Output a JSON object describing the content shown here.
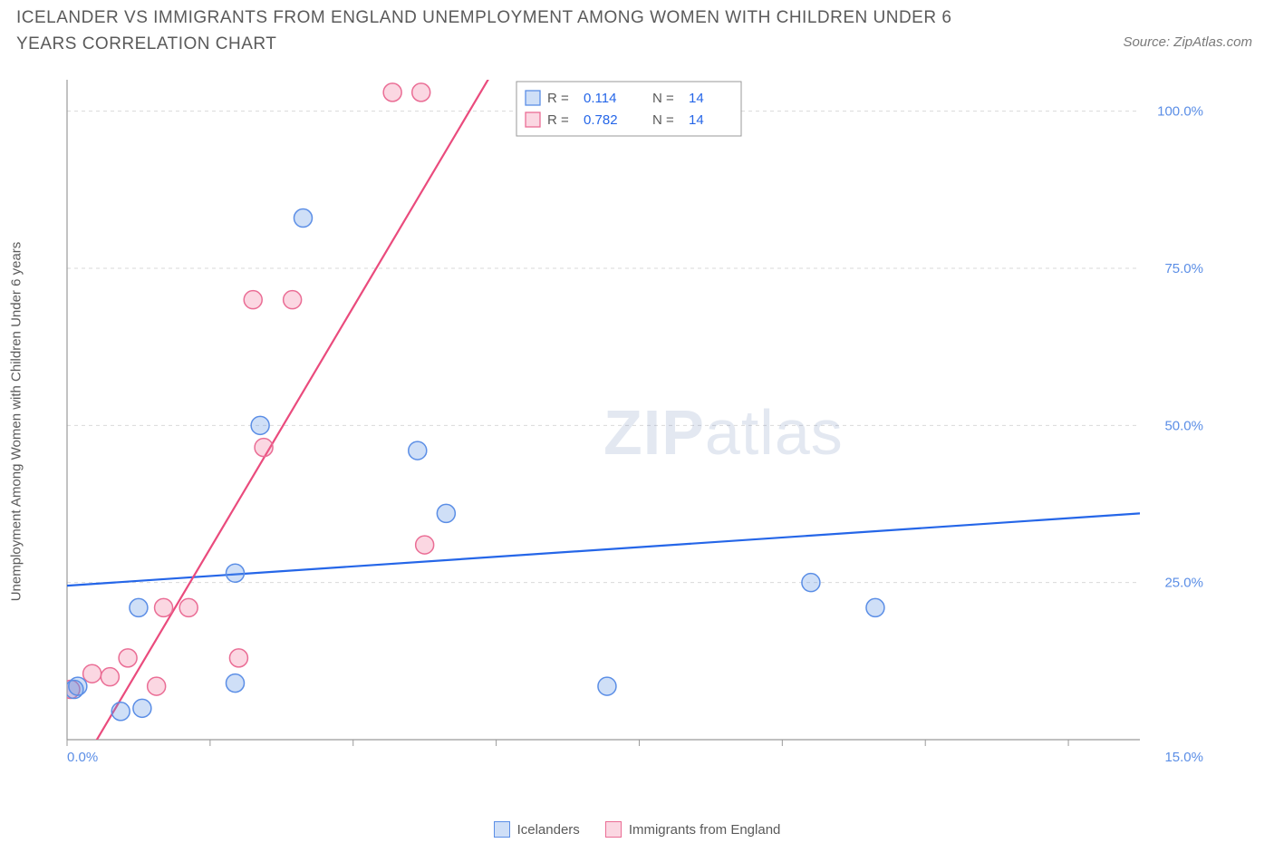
{
  "title": "ICELANDER VS IMMIGRANTS FROM ENGLAND UNEMPLOYMENT AMONG WOMEN WITH CHILDREN UNDER 6 YEARS CORRELATION CHART",
  "source_label": "Source: ZipAtlas.com",
  "y_axis_label": "Unemployment Among Women with Children Under 6 years",
  "watermark": {
    "bold": "ZIP",
    "rest": "atlas"
  },
  "chart": {
    "type": "scatter",
    "xlim": [
      0,
      15
    ],
    "ylim": [
      0,
      105
    ],
    "x_ticks": [
      0,
      2,
      4,
      6,
      8,
      10,
      12,
      14
    ],
    "x_tick_labels_shown": {
      "0": "0.0%",
      "15": "15.0%"
    },
    "y_ticks": [
      25,
      50,
      75,
      100
    ],
    "y_tick_labels": [
      "25.0%",
      "50.0%",
      "75.0%",
      "100.0%"
    ],
    "grid_color": "#d9d9d9",
    "axis_color": "#9a9a9a",
    "tick_label_color": "#5b8ee6",
    "background_color": "#ffffff",
    "marker_radius": 10,
    "marker_stroke_width": 1.5,
    "trend_line_width": 2.2,
    "series": [
      {
        "name": "Icelanders",
        "fill": "rgba(96,150,230,0.30)",
        "stroke": "#5b8ee6",
        "points": [
          [
            0.1,
            8.0
          ],
          [
            0.15,
            8.5
          ],
          [
            0.75,
            4.5
          ],
          [
            1.05,
            5.0
          ],
          [
            1.0,
            21.0
          ],
          [
            2.35,
            9.0
          ],
          [
            2.35,
            26.5
          ],
          [
            2.7,
            50.0
          ],
          [
            3.3,
            83.0
          ],
          [
            4.9,
            46.0
          ],
          [
            5.3,
            36.0
          ],
          [
            7.55,
            8.5
          ],
          [
            10.4,
            25.0
          ],
          [
            11.3,
            21.0
          ]
        ],
        "trend": {
          "y_at_x0": 24.5,
          "y_at_x15": 36.0,
          "color": "#2566e8"
        },
        "R": "0.114",
        "N": "14"
      },
      {
        "name": "Immigrants from England",
        "fill": "rgba(240,110,150,0.28)",
        "stroke": "#ea6d95",
        "points": [
          [
            0.05,
            8.0
          ],
          [
            0.35,
            10.5
          ],
          [
            0.6,
            10.0
          ],
          [
            0.85,
            13.0
          ],
          [
            1.25,
            8.5
          ],
          [
            1.35,
            21.0
          ],
          [
            1.7,
            21.0
          ],
          [
            2.4,
            13.0
          ],
          [
            2.6,
            70.0
          ],
          [
            2.75,
            46.5
          ],
          [
            3.15,
            70.0
          ],
          [
            4.55,
            103.0
          ],
          [
            4.95,
            103.0
          ],
          [
            5.0,
            31.0
          ]
        ],
        "trend": {
          "y_at_x0": -8.0,
          "y_at_x15": 280.0,
          "color": "#ea4b7d"
        },
        "R": "0.782",
        "N": "14"
      }
    ]
  },
  "stats_box": {
    "R_label": "R =",
    "N_label": "N ="
  },
  "legend": {
    "s1_label": "Icelanders",
    "s2_label": "Immigrants from England"
  }
}
